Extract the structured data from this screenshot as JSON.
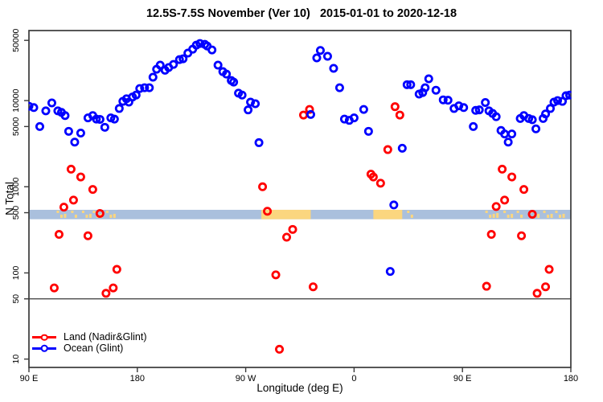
{
  "title": "12.5S-7.5S November (Ver 10)   2015-01-01 to 2020-12-18",
  "chart_data": {
    "type": "scatter",
    "title": "12.5S-7.5S November (Ver 10)   2015-01-01 to 2020-12-18",
    "xlabel": "Longitude (deg E)",
    "ylabel": "N Total",
    "grid": false,
    "legend_position": "bottom-left",
    "x_axis": {
      "lim": [
        90,
        540
      ],
      "ticks": [
        90,
        180,
        270,
        360,
        450,
        540
      ],
      "tick_labels": [
        "90 E",
        "180",
        "90 W",
        "0",
        "90 E",
        "180"
      ]
    },
    "y_axis": {
      "scale": "log",
      "lim": [
        8,
        65000
      ],
      "ticks": [
        10,
        50,
        100,
        500,
        1000,
        5000,
        10000,
        50000
      ],
      "tick_labels": [
        "10",
        "50",
        "100",
        "500",
        "1000",
        "5000",
        "10000",
        "50000"
      ]
    },
    "reference_line_n": 50,
    "land_ocean_band": {
      "n_range": [
        420,
        540
      ],
      "ocean_color": "#aac0dd",
      "land_color": "#fbd67f",
      "segments": [
        {
          "from": 113,
          "to": 122,
          "style": "speckle"
        },
        {
          "from": 125,
          "to": 131,
          "style": "speckle"
        },
        {
          "from": 134,
          "to": 141,
          "style": "speckle"
        },
        {
          "from": 143,
          "to": 152,
          "style": "speckle"
        },
        {
          "from": 154,
          "to": 161,
          "style": "speckle"
        },
        {
          "from": 283,
          "to": 324,
          "style": "solid"
        },
        {
          "from": 376,
          "to": 400,
          "style": "solid"
        },
        {
          "from": 404,
          "to": 410,
          "style": "speckle"
        },
        {
          "from": 469,
          "to": 481,
          "style": "speckle"
        },
        {
          "from": 484,
          "to": 492,
          "style": "speckle"
        },
        {
          "from": 495,
          "to": 501,
          "style": "speckle"
        },
        {
          "from": 506,
          "to": 514,
          "style": "speckle"
        },
        {
          "from": 517,
          "to": 524,
          "style": "speckle"
        },
        {
          "from": 527,
          "to": 535,
          "style": "speckle"
        }
      ]
    },
    "series": [
      {
        "name": "Land (Nadir&Glint)",
        "color": "#ff0000",
        "marker": "open-circle",
        "points": [
          [
            125,
            1600
          ],
          [
            133,
            1300
          ],
          [
            143,
            930
          ],
          [
            127,
            700
          ],
          [
            119,
            580
          ],
          [
            149,
            490
          ],
          [
            115,
            280
          ],
          [
            139,
            270
          ],
          [
            163,
            110
          ],
          [
            111,
            67
          ],
          [
            160,
            67
          ],
          [
            154,
            58
          ],
          [
            284,
            1000
          ],
          [
            288,
            520
          ],
          [
            304,
            260
          ],
          [
            309,
            320
          ],
          [
            295,
            95
          ],
          [
            298,
            13
          ],
          [
            318,
            6800
          ],
          [
            323,
            7900
          ],
          [
            326,
            69
          ],
          [
            374,
            1400
          ],
          [
            376,
            1300
          ],
          [
            382,
            1100
          ],
          [
            388,
            2700
          ],
          [
            394,
            8500
          ],
          [
            398,
            6800
          ],
          [
            470,
            70
          ],
          [
            474,
            280
          ],
          [
            478,
            590
          ],
          [
            483,
            1600
          ],
          [
            485,
            700
          ],
          [
            491,
            1300
          ],
          [
            499,
            270
          ],
          [
            501,
            930
          ],
          [
            508,
            480
          ],
          [
            512,
            58
          ],
          [
            519,
            69
          ],
          [
            522,
            110
          ]
        ]
      },
      {
        "name": "Ocean (Glint)",
        "color": "#0000ff",
        "marker": "open-circle",
        "points": [
          [
            90,
            8600
          ],
          [
            94,
            8300
          ],
          [
            99,
            5000
          ],
          [
            104,
            7600
          ],
          [
            109,
            9400
          ],
          [
            114,
            7600
          ],
          [
            117,
            7300
          ],
          [
            120,
            6700
          ],
          [
            123,
            4400
          ],
          [
            128,
            3300
          ],
          [
            133,
            4200
          ],
          [
            139,
            6300
          ],
          [
            143,
            6700
          ],
          [
            146,
            6100
          ],
          [
            149,
            6050
          ],
          [
            153,
            4900
          ],
          [
            158,
            6300
          ],
          [
            161,
            6100
          ],
          [
            165,
            8100
          ],
          [
            168,
            9800
          ],
          [
            171,
            10500
          ],
          [
            173,
            9600
          ],
          [
            176,
            11000
          ],
          [
            179,
            11600
          ],
          [
            182,
            13800
          ],
          [
            186,
            14100
          ],
          [
            190,
            14100
          ],
          [
            193,
            18700
          ],
          [
            196,
            23100
          ],
          [
            199,
            25800
          ],
          [
            203,
            22500
          ],
          [
            206,
            24200
          ],
          [
            210,
            26300
          ],
          [
            215,
            29900
          ],
          [
            218,
            30600
          ],
          [
            222,
            35600
          ],
          [
            226,
            39500
          ],
          [
            229,
            44000
          ],
          [
            232,
            46000
          ],
          [
            236,
            45000
          ],
          [
            238,
            43000
          ],
          [
            242,
            38700
          ],
          [
            247,
            25800
          ],
          [
            251,
            21700
          ],
          [
            254,
            20300
          ],
          [
            258,
            17100
          ],
          [
            260,
            16400
          ],
          [
            264,
            12200
          ],
          [
            267,
            11600
          ],
          [
            272,
            7800
          ],
          [
            274,
            9600
          ],
          [
            278,
            9200
          ],
          [
            281,
            3250
          ],
          [
            324,
            6900
          ],
          [
            329,
            31300
          ],
          [
            332,
            38200
          ],
          [
            338,
            32700
          ],
          [
            343,
            23700
          ],
          [
            348,
            14100
          ],
          [
            352,
            6100
          ],
          [
            356,
            5900
          ],
          [
            360,
            6300
          ],
          [
            368,
            7900
          ],
          [
            372,
            4400
          ],
          [
            390,
            104
          ],
          [
            393,
            615
          ],
          [
            400,
            2800
          ],
          [
            404,
            15300
          ],
          [
            407,
            15300
          ],
          [
            414,
            11900
          ],
          [
            417,
            12400
          ],
          [
            419,
            14100
          ],
          [
            422,
            17900
          ],
          [
            428,
            13200
          ],
          [
            434,
            10200
          ],
          [
            438,
            10100
          ],
          [
            443,
            8100
          ],
          [
            447,
            8700
          ],
          [
            451,
            8300
          ],
          [
            459,
            5000
          ],
          [
            461,
            7700
          ],
          [
            464,
            7800
          ],
          [
            469,
            9500
          ],
          [
            472,
            7600
          ],
          [
            475,
            7100
          ],
          [
            478,
            6500
          ],
          [
            482,
            4500
          ],
          [
            485,
            4100
          ],
          [
            488,
            3300
          ],
          [
            491,
            4100
          ],
          [
            498,
            6200
          ],
          [
            501,
            6700
          ],
          [
            505,
            6200
          ],
          [
            508,
            6000
          ],
          [
            511,
            4700
          ],
          [
            517,
            6200
          ],
          [
            519,
            7000
          ],
          [
            523,
            8100
          ],
          [
            526,
            9600
          ],
          [
            529,
            10000
          ],
          [
            533,
            9800
          ],
          [
            536,
            11400
          ],
          [
            539,
            11600
          ]
        ]
      }
    ]
  },
  "colors": {
    "background": "#ffffff",
    "frame": "#3a3a3a",
    "reference_line": "#4a4a4a",
    "text": "#000000"
  }
}
